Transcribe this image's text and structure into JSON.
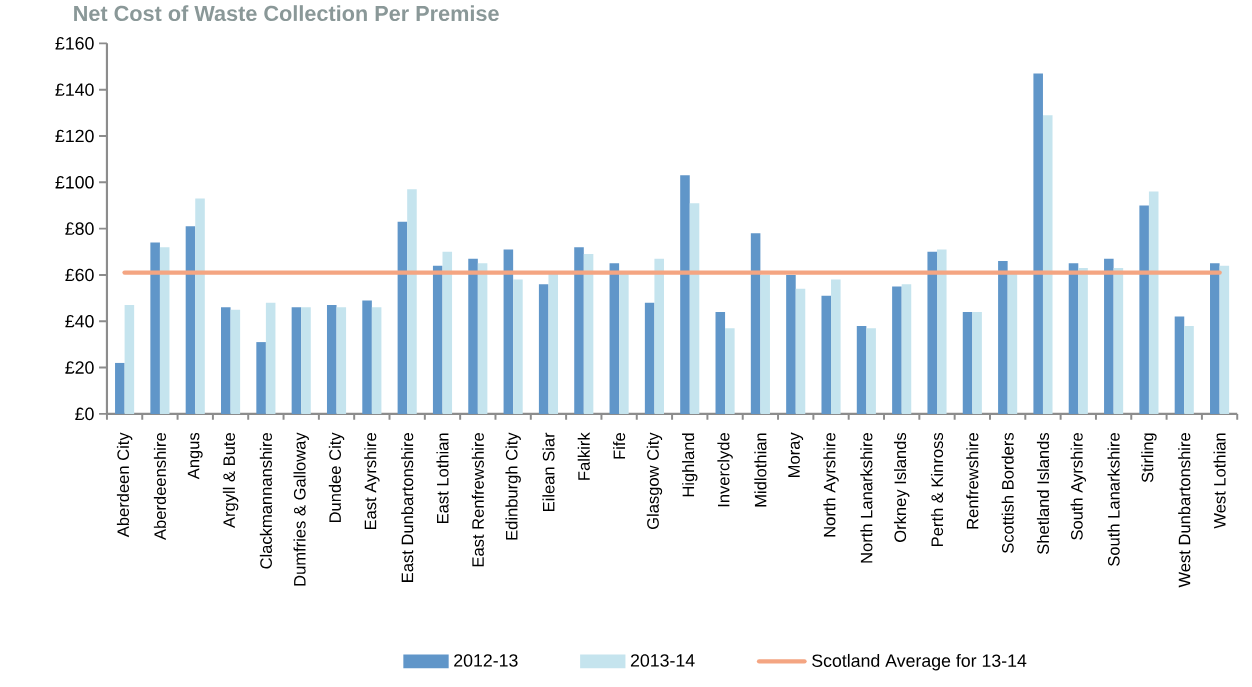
{
  "chart_data": {
    "type": "bar",
    "title": "Net Cost of Waste Collection Per Premise",
    "categories": [
      "Aberdeen City",
      "Aberdeenshire",
      "Angus",
      "Argyll & Bute",
      "Clackmannanshire",
      "Dumfries & Galloway",
      "Dundee City",
      "East Ayrshire",
      "East Dunbartonshire",
      "East Lothian",
      "East Renfrewshire",
      "Edinburgh City",
      "Eilean Siar",
      "Falkirk",
      "Fife",
      "Glasgow City",
      "Highland",
      "Inverclyde",
      "Midlothian",
      "Moray",
      "North Ayrshire",
      "North Lanarkshire",
      "Orkney Islands",
      "Perth & Kinross",
      "Renfrewshire",
      "Scottish Borders",
      "Shetland Islands",
      "South Ayrshire",
      "South Lanarkshire",
      "Stirling",
      "West Dunbartonshire",
      "West Lothian"
    ],
    "series": [
      {
        "name": "2012-13",
        "color": "#6096c9",
        "values": [
          22,
          74,
          81,
          46,
          31,
          46,
          47,
          49,
          83,
          64,
          67,
          71,
          56,
          72,
          65,
          48,
          103,
          44,
          78,
          60,
          51,
          38,
          55,
          70,
          44,
          66,
          147,
          65,
          67,
          90,
          42,
          65
        ]
      },
      {
        "name": "2013-14",
        "color": "#c5e4ee",
        "values": [
          47,
          72,
          93,
          45,
          48,
          46,
          46,
          46,
          97,
          70,
          65,
          58,
          61,
          69,
          61,
          67,
          91,
          37,
          60,
          54,
          58,
          37,
          56,
          71,
          44,
          61,
          129,
          63,
          63,
          96,
          38,
          64
        ]
      }
    ],
    "ylim": [
      0,
      160
    ],
    "yticks": [
      {
        "value": 0,
        "label": "£0"
      },
      {
        "value": 20,
        "label": "£20"
      },
      {
        "value": 40,
        "label": "£40"
      },
      {
        "value": 60,
        "label": "£60"
      },
      {
        "value": 80,
        "label": "£80"
      },
      {
        "value": 100,
        "label": "£100"
      },
      {
        "value": 120,
        "label": "£120"
      },
      {
        "value": 140,
        "label": "£140"
      },
      {
        "value": 160,
        "label": "£160"
      }
    ],
    "ref_lines": [
      {
        "axis": "y",
        "value": 61,
        "label": "Scotland Average for 13-14",
        "color": "#f4a582"
      }
    ],
    "legend": "bottom"
  }
}
